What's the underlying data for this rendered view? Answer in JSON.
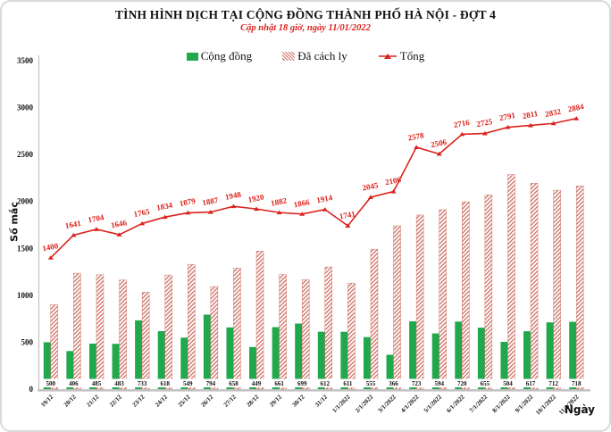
{
  "colors": {
    "community_green": "#1fa84c",
    "total_red": "#da231d",
    "hatch_red": "#cf7a70",
    "axis_gray": "#c4c4c4"
  },
  "chart_data": {
    "type": "bar+line",
    "title": "TÌNH HÌNH DỊCH TẠI CỘNG ĐỒNG THÀNH PHỐ HÀ NỘI - ĐỢT 4",
    "subtitle": "Cập nhật 18 giờ, ngày 11/01/2022",
    "xlabel": "Ngày",
    "ylabel": "Số mắc",
    "ylim": [
      0,
      3500
    ],
    "y_ticks": [
      0,
      500,
      1000,
      1500,
      2000,
      2500,
      3000,
      3500
    ],
    "grid": false,
    "legend_position": "top",
    "categories": [
      "19/12",
      "20/12",
      "21/12",
      "22/12",
      "23/12",
      "24/12",
      "25/12",
      "26/12",
      "27/12",
      "28/12",
      "29/12",
      "30/12",
      "31/12",
      "1/1/2022",
      "2/1/2022",
      "3/1/2022",
      "4/1/2022",
      "5/1/2022",
      "6/1/2022",
      "7/1/2022",
      "8/1/2022",
      "9/1/2022",
      "10/1/2022",
      "11/1/2022"
    ],
    "series": [
      {
        "name": "Cộng đồng",
        "type": "bar",
        "style": "solid-green",
        "labeled": true,
        "values": [
          500,
          406,
          485,
          483,
          733,
          618,
          549,
          794,
          658,
          449,
          661,
          699,
          612,
          611,
          555,
          366,
          723,
          594,
          720,
          655,
          504,
          617,
          712,
          718
        ]
      },
      {
        "name": "Đã cách ly",
        "type": "bar",
        "style": "hatched-red",
        "labeled": false,
        "values": [
          900,
          1235,
          1219,
          1163,
          1032,
          1216,
          1330,
          1093,
          1290,
          1471,
          1221,
          1167,
          1302,
          1130,
          1490,
          1740,
          1855,
          1912,
          1996,
          2070,
          2287,
          2194,
          2120,
          2166
        ]
      },
      {
        "name": "Tổng",
        "type": "line",
        "style": "red-line-triangle-markers",
        "labeled": true,
        "values": [
          1400,
          1641,
          1704,
          1646,
          1765,
          1834,
          1879,
          1887,
          1948,
          1920,
          1882,
          1866,
          1914,
          1741,
          2045,
          2106,
          2578,
          2506,
          2716,
          2725,
          2791,
          2811,
          2832,
          2884
        ]
      }
    ]
  }
}
